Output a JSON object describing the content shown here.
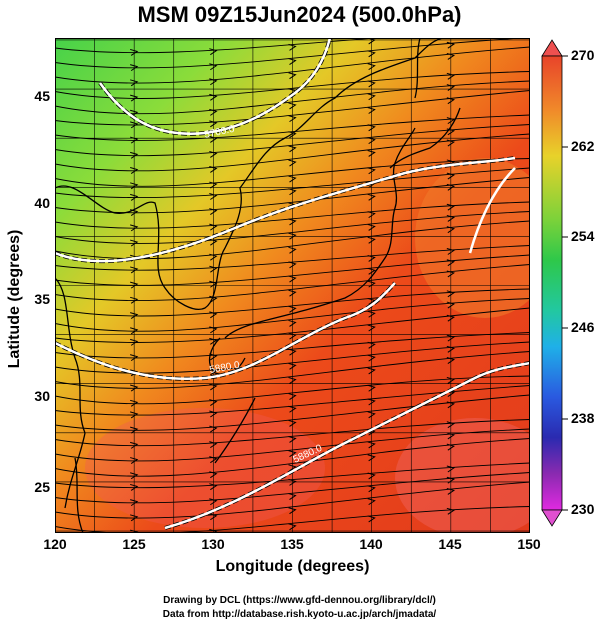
{
  "title": "MSM 09Z15Jun2024 (500.0hPa)",
  "xlabel": "Longitude (degrees)",
  "ylabel": "Latitude  (degrees)",
  "x_ticks": [
    "120",
    "125",
    "130",
    "135",
    "140",
    "145",
    "150"
  ],
  "y_ticks": [
    "25",
    "30",
    "35",
    "40",
    "45"
  ],
  "colorbar_ticks": [
    "270",
    "262",
    "254",
    "246",
    "238",
    "230"
  ],
  "contour_labels": [
    "5700.0",
    "5820.0",
    "5880.0"
  ],
  "credit_line1": "Drawing by DCL (https://www.gfd-dennou.org/library/dcl/)",
  "credit_line2": "Data from http://database.rish.kyoto-u.ac.jp/arch/jmadata/",
  "map_data": {
    "lon_range": [
      120,
      150
    ],
    "lat_range": [
      22.4,
      47.6
    ],
    "field": "temperature (K)",
    "colorbar_range": [
      230,
      270
    ],
    "streamlines": true,
    "graticule_deg": 2.5
  }
}
